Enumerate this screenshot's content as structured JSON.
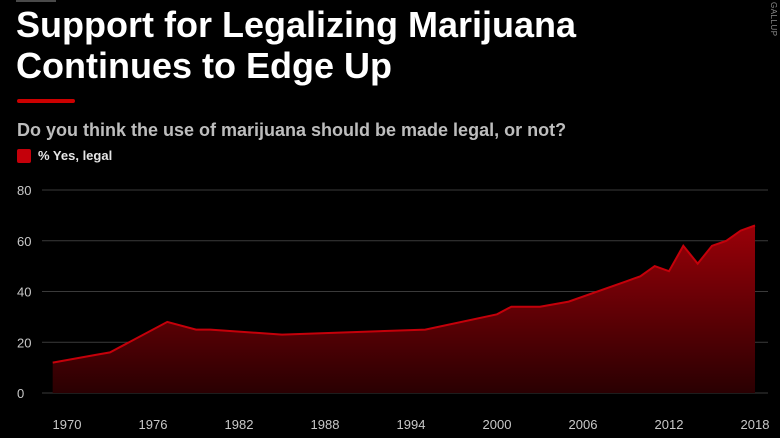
{
  "header": {
    "title": "Support for Legalizing Marijuana Continues to Edge Up",
    "subtitle": "Do you think the use of marijuana should be made legal, or not?",
    "source": "GALLUP"
  },
  "colors": {
    "accent": "#cc0000",
    "series": "#c4000a",
    "background": "#000000",
    "grid": "#3a3a3a"
  },
  "chart_data": {
    "type": "area",
    "title": "Support for Legalizing Marijuana Continues to Edge Up",
    "subtitle": "Do you think the use of marijuana should be made legal, or not?",
    "xlabel": "",
    "ylabel": "",
    "xlim": [
      1970,
      2018
    ],
    "ylim": [
      0,
      80
    ],
    "x_ticks": [
      1970,
      1976,
      1982,
      1988,
      1994,
      2000,
      2006,
      2012,
      2018
    ],
    "y_ticks": [
      0,
      20,
      40,
      60,
      80
    ],
    "grid": true,
    "legend": "top-left",
    "series": [
      {
        "name": "% Yes, legal",
        "color": "#c4000a",
        "x": [
          1969,
          1972,
          1973,
          1977,
          1979,
          1980,
          1985,
          1995,
          2000,
          2001,
          2003,
          2005,
          2009,
          2010,
          2011,
          2012,
          2013,
          2014,
          2015,
          2016,
          2017,
          2018
        ],
        "y": [
          12,
          15,
          16,
          28,
          25,
          25,
          23,
          25,
          31,
          34,
          34,
          36,
          44,
          46,
          50,
          48,
          58,
          51,
          58,
          60,
          64,
          66
        ]
      }
    ]
  }
}
